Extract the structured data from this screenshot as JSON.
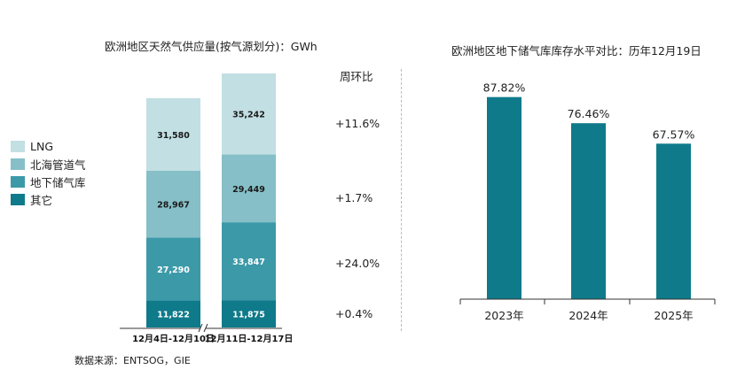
{
  "chart_data": [
    {
      "type": "bar",
      "stacked": true,
      "title": "欧洲地区天然气供应量(按气源划分)：GWh",
      "categories": [
        "12月4日-12月10日",
        "12月11日-12月17日"
      ],
      "series": [
        {
          "name": "其它",
          "values": [
            11822,
            11875
          ],
          "labels": [
            "11,822",
            "11,875"
          ],
          "color": "#0e7a8a"
        },
        {
          "name": "地下储气库",
          "values": [
            27290,
            33847
          ],
          "labels": [
            "27,290",
            "33,847"
          ],
          "color": "#3c9aa8"
        },
        {
          "name": "北海管道气",
          "values": [
            28967,
            29449
          ],
          "labels": [
            "28,967",
            "29,449"
          ],
          "color": "#86bfc7"
        },
        {
          "name": "LNG",
          "values": [
            31580,
            35242
          ],
          "labels": [
            "31,580",
            "35,242"
          ],
          "color": "#c2dfe3"
        }
      ],
      "legend": [
        "LNG",
        "北海管道气",
        "地下储气库",
        "其它"
      ],
      "wow_header": "周环比",
      "wow_changes": [
        "+11.6%",
        "+1.7%",
        "+24.0%",
        "+0.4%"
      ],
      "source": "数据来源：ENTSOG，GIE"
    },
    {
      "type": "bar",
      "title": "欧洲地区地下储气库库存水平对比：历年12月19日",
      "categories": [
        "2023年",
        "2024年",
        "2025年"
      ],
      "values": [
        87.82,
        76.46,
        67.57
      ],
      "labels": [
        "87.82%",
        "76.46%",
        "67.57%"
      ],
      "ylim": [
        0,
        100
      ],
      "color": "#0e7a8a"
    }
  ]
}
